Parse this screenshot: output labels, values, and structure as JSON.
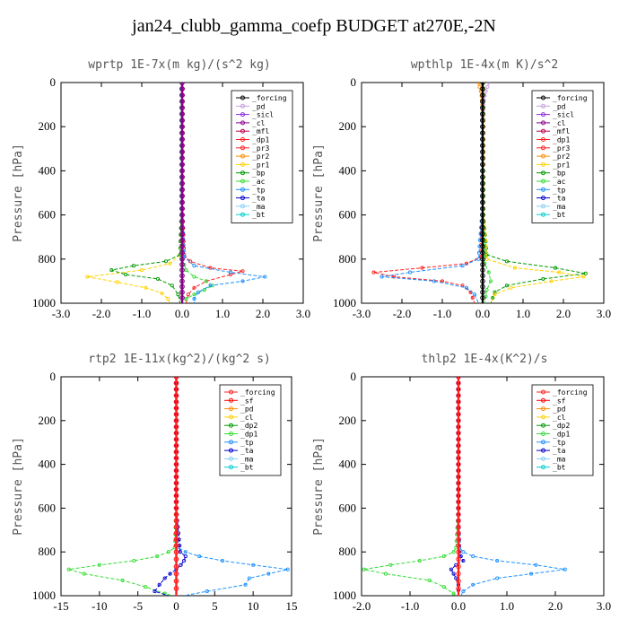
{
  "figure": {
    "title": "jan24_clubb_gamma_coefp  BUDGET at270E,-2N"
  },
  "colors": {
    "forcing_k": "#000000",
    "lav": "#c9a0dc",
    "pur": "#8a2be2",
    "mag": "#8b008b",
    "mfl": "#c00050",
    "red": "#ff2020",
    "org": "#ff8c00",
    "yel": "#ffd000",
    "grn": "#009900",
    "lgrn": "#33dd33",
    "blue": "#1e90ff",
    "navy": "#0000cc",
    "sky": "#87cefa",
    "cyan": "#00ced1",
    "sf": "#ff0000"
  },
  "chart_data": [
    {
      "type": "line",
      "title": "wprtp  1E-7x(m kg)/(s^2 kg)",
      "ylabel": "Pressure [hPa]",
      "xlim": [
        -3,
        3
      ],
      "ylim": [
        1000,
        0
      ],
      "xticks": [
        "-3.0",
        "-2.0",
        "-1.0",
        "0.0",
        "1.0",
        "2.0",
        "3.0"
      ],
      "yticks": [
        "0",
        "200",
        "400",
        "600",
        "800",
        "1000"
      ],
      "legend_position": "top-right",
      "legend": [
        "_forcing",
        "_pd",
        "_sicl",
        "_cl",
        "_mfl",
        "_dp1",
        "_pr3",
        "_pr2",
        "_pr1",
        "_bp",
        "_ac",
        "_tp",
        "_ta",
        "_ma",
        "_bt"
      ],
      "series": [
        {
          "name": "_pr1",
          "color": "yel",
          "y": [
            0,
            600,
            780,
            820,
            850,
            880,
            905,
            930,
            955,
            980,
            1000
          ],
          "x": [
            -0.02,
            -0.02,
            -0.05,
            -0.3,
            -1.0,
            -2.35,
            -1.6,
            -0.9,
            -0.5,
            -0.35,
            -0.3
          ]
        },
        {
          "name": "_pr3",
          "color": "red",
          "y": [
            0,
            600,
            780,
            810,
            840,
            855,
            870,
            900,
            930,
            960,
            1000
          ],
          "x": [
            0.02,
            0.02,
            0.05,
            0.2,
            0.7,
            1.5,
            1.2,
            0.6,
            0.3,
            0.15,
            0.1
          ]
        },
        {
          "name": "_bp",
          "color": "grn",
          "y": [
            0,
            600,
            780,
            810,
            830,
            850,
            870,
            890,
            920,
            960,
            1000
          ],
          "x": [
            -0.02,
            -0.02,
            -0.05,
            -0.4,
            -1.2,
            -1.75,
            -1.4,
            -0.6,
            -0.25,
            -0.1,
            -0.05
          ]
        },
        {
          "name": "_ac",
          "color": "lgrn",
          "y": [
            0,
            600,
            800,
            850,
            880,
            900,
            920,
            940,
            960,
            980,
            1000
          ],
          "x": [
            0.0,
            0.0,
            0.0,
            0.1,
            0.3,
            0.6,
            0.75,
            0.55,
            0.3,
            0.1,
            0.05
          ]
        },
        {
          "name": "_tp",
          "color": "blue",
          "y": [
            0,
            600,
            790,
            830,
            860,
            880,
            900,
            920,
            950,
            980,
            1000
          ],
          "x": [
            0.0,
            0.0,
            0.05,
            0.3,
            1.2,
            2.05,
            1.5,
            0.7,
            0.4,
            0.3,
            0.3
          ]
        },
        {
          "name": "_forcing",
          "color": "forcing_k",
          "y": [
            0,
            200,
            400,
            600,
            800,
            900,
            1000
          ],
          "x": [
            0,
            0,
            0,
            0,
            0,
            0,
            0
          ]
        },
        {
          "name": "_cl",
          "color": "mag",
          "y": [
            0,
            200,
            400,
            600,
            800,
            900,
            1000
          ],
          "x": [
            0,
            0,
            0,
            0,
            0,
            0,
            0
          ]
        }
      ]
    },
    {
      "type": "line",
      "title": "wpthlp  1E-4x(m K)/s^2",
      "ylabel": "Pressure [hPa]",
      "xlim": [
        -3,
        3
      ],
      "ylim": [
        1000,
        0
      ],
      "xticks": [
        "-3.0",
        "-2.0",
        "-1.0",
        "0.0",
        "1.0",
        "2.0",
        "3.0"
      ],
      "yticks": [
        "0",
        "200",
        "400",
        "600",
        "800",
        "1000"
      ],
      "legend_position": "top-right",
      "legend": [
        "_forcing",
        "_pd",
        "_sicl",
        "_cl",
        "_mfl",
        "_dp1",
        "_pr3",
        "_pr2",
        "_pr1",
        "_bp",
        "_ac",
        "_tp",
        "_ta",
        "_ma",
        "_bt"
      ],
      "series": [
        {
          "name": "_dp1",
          "color": "red",
          "y": [
            0,
            600,
            790,
            820,
            840,
            860,
            880,
            900,
            920,
            950,
            1000
          ],
          "x": [
            -0.02,
            -0.02,
            -0.05,
            -0.4,
            -1.5,
            -2.7,
            -2.2,
            -1.0,
            -0.5,
            -0.3,
            -0.2
          ]
        },
        {
          "name": "_tp",
          "color": "blue",
          "y": [
            0,
            600,
            800,
            830,
            860,
            880,
            900,
            930,
            960,
            1000
          ],
          "x": [
            -0.02,
            -0.02,
            -0.1,
            -0.5,
            -1.8,
            -2.5,
            -1.2,
            -0.4,
            -0.2,
            -0.1
          ]
        },
        {
          "name": "_bp",
          "color": "grn",
          "y": [
            0,
            600,
            780,
            810,
            840,
            865,
            890,
            920,
            950,
            1000
          ],
          "x": [
            0.02,
            0.02,
            0.1,
            0.6,
            1.8,
            2.55,
            1.5,
            0.6,
            0.3,
            0.2
          ]
        },
        {
          "name": "_pr1",
          "color": "yel",
          "y": [
            0,
            600,
            800,
            840,
            860,
            880,
            900,
            930,
            960,
            1000
          ],
          "x": [
            0.02,
            0.02,
            0.1,
            0.8,
            1.9,
            2.5,
            1.7,
            0.7,
            0.3,
            0.2
          ]
        },
        {
          "name": "_ac",
          "color": "lgrn",
          "y": [
            0,
            600,
            820,
            860,
            900,
            940,
            1000
          ],
          "x": [
            0.0,
            0.0,
            0.05,
            0.15,
            0.2,
            0.1,
            0.05
          ]
        },
        {
          "name": "_pd",
          "color": "lav",
          "y": [
            0,
            20,
            40,
            60,
            80,
            100,
            200,
            400
          ],
          "x": [
            0.15,
            0.12,
            0.08,
            0.05,
            0.03,
            0.02,
            0.0,
            0.0
          ]
        },
        {
          "name": "_pr2",
          "color": "org",
          "y": [
            0,
            20,
            40,
            60,
            80,
            100,
            200,
            400
          ],
          "x": [
            -0.1,
            -0.08,
            -0.05,
            -0.03,
            -0.02,
            -0.01,
            0.0,
            0.0
          ]
        },
        {
          "name": "_forcing",
          "color": "forcing_k",
          "y": [
            0,
            200,
            400,
            600,
            800,
            900,
            1000
          ],
          "x": [
            0,
            0,
            0,
            0,
            0,
            0,
            0
          ]
        }
      ]
    },
    {
      "type": "line",
      "title": "rtp2  1E-11x(kg^2)/(kg^2 s)",
      "ylabel": "Pressure [hPa]",
      "xlim": [
        -15,
        15
      ],
      "ylim": [
        1000,
        0
      ],
      "xticks": [
        "-15",
        "-10",
        "-5",
        "0",
        "5",
        "10",
        "15"
      ],
      "yticks": [
        "0",
        "200",
        "400",
        "600",
        "800",
        "1000"
      ],
      "legend_position": "top-right",
      "legend": [
        "_forcing",
        "_sf",
        "_pd",
        "_cl",
        "_dp2",
        "_dp1",
        "_tp",
        "_ta",
        "_ma",
        "_bt"
      ],
      "series": [
        {
          "name": "_dp1",
          "color": "lgrn",
          "y": [
            0,
            600,
            780,
            800,
            820,
            840,
            860,
            880,
            900,
            930,
            960,
            990,
            1000
          ],
          "x": [
            0,
            0,
            -0.2,
            -1.0,
            -2.5,
            -5.5,
            -10.0,
            -14.0,
            -12.0,
            -7.0,
            -4.0,
            -1.5,
            -0.5
          ]
        },
        {
          "name": "_tp",
          "color": "blue",
          "y": [
            0,
            600,
            780,
            800,
            820,
            840,
            860,
            880,
            900,
            920,
            950,
            980,
            1000
          ],
          "x": [
            0,
            0,
            0.2,
            1.2,
            3.0,
            6.0,
            10.0,
            14.5,
            12.0,
            9.5,
            9.0,
            4.0,
            1.0
          ]
        },
        {
          "name": "_ta",
          "color": "navy",
          "y": [
            0,
            600,
            800,
            820,
            840,
            860,
            880,
            900,
            920,
            950,
            980,
            1000
          ],
          "x": [
            0,
            0,
            0.5,
            1.2,
            1.0,
            0.6,
            0.0,
            -0.8,
            -1.5,
            -2.2,
            -2.8,
            -1.0
          ]
        },
        {
          "name": "_sf",
          "color": "sf",
          "y": [
            0,
            200,
            400,
            600,
            800,
            900,
            1000
          ],
          "x": [
            0,
            0,
            0,
            0,
            0,
            0,
            0
          ]
        },
        {
          "name": "_forcing",
          "color": "red",
          "y": [
            0,
            200,
            400,
            600,
            800,
            900,
            1000
          ],
          "x": [
            0,
            0,
            0,
            0,
            0,
            0,
            0
          ]
        }
      ]
    },
    {
      "type": "line",
      "title": "thlp2  1E-4x(K^2)/s",
      "ylabel": "Pressure [hPa]",
      "xlim": [
        -2,
        3
      ],
      "ylim": [
        1000,
        0
      ],
      "xticks": [
        "-2.0",
        "-1.0",
        "0.0",
        "1.0",
        "2.0",
        "3.0"
      ],
      "yticks": [
        "0",
        "200",
        "400",
        "600",
        "800",
        "1000"
      ],
      "legend_position": "top-right",
      "legend": [
        "_forcing",
        "_sf",
        "_pd",
        "_cl",
        "_dp2",
        "_dp1",
        "_tp",
        "_ta",
        "_ma",
        "_bt"
      ],
      "series": [
        {
          "name": "_dp1",
          "color": "lgrn",
          "y": [
            0,
            600,
            780,
            800,
            820,
            840,
            860,
            880,
            900,
            930,
            960,
            990,
            1000
          ],
          "x": [
            0,
            0,
            -0.05,
            -0.1,
            -0.3,
            -0.8,
            -1.4,
            -1.95,
            -1.5,
            -0.6,
            -0.3,
            -0.1,
            -0.05
          ]
        },
        {
          "name": "_tp",
          "color": "blue",
          "y": [
            0,
            600,
            780,
            800,
            820,
            840,
            860,
            880,
            900,
            920,
            950,
            980,
            1000
          ],
          "x": [
            0,
            0,
            0.02,
            0.1,
            0.3,
            0.8,
            1.6,
            2.2,
            1.5,
            0.8,
            0.3,
            0.1,
            0.05
          ]
        },
        {
          "name": "_ta",
          "color": "navy",
          "y": [
            0,
            600,
            800,
            820,
            840,
            860,
            880,
            900,
            920,
            950,
            1000
          ],
          "x": [
            0,
            0,
            0.02,
            0.05,
            0.1,
            -0.05,
            -0.15,
            -0.1,
            -0.05,
            0.0,
            0.0
          ]
        },
        {
          "name": "_forcing",
          "color": "red",
          "y": [
            0,
            200,
            400,
            600,
            800,
            900,
            1000
          ],
          "x": [
            0,
            0,
            0,
            0,
            0,
            0,
            0
          ]
        }
      ]
    }
  ]
}
